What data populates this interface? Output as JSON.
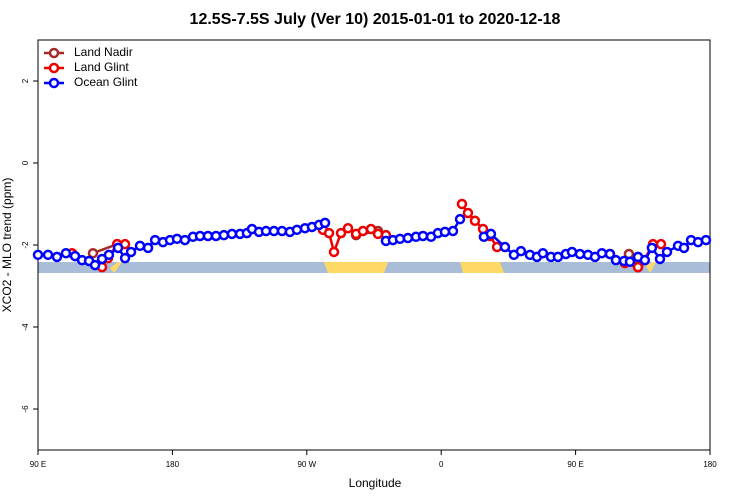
{
  "chart_data": {
    "type": "line",
    "title": "12.5S-7.5S July (Ver 10)   2015-01-01 to 2020-12-18",
    "xlabel": "Longitude",
    "ylabel": "XCO2 - MLO trend (ppm)",
    "xlim": [
      90,
      540
    ],
    "ylim": [
      -7,
      3
    ],
    "xticks": [
      {
        "value": 90,
        "label": "90 E"
      },
      180,
      {
        "value": 270,
        "label": "90 W"
      },
      {
        "value": 360,
        "label": "0"
      },
      {
        "value": 450,
        "label": "90 E"
      },
      {
        "value": 540,
        "label": "180"
      }
    ],
    "yticks": [
      2,
      0,
      -2,
      -4,
      -6
    ],
    "legend": "topleft",
    "series": [
      {
        "name": "Land Nadir",
        "color": "#a52a2a",
        "x": [
          126.8,
          143.0,
          200,
          303.0,
          317.7,
          400,
          485.7,
          491.8
        ],
        "values": [
          -2.2,
          -1.98,
          null,
          -1.76,
          -1.66,
          null,
          -2.22,
          -2.54
        ]
      },
      {
        "name": "Land Glint",
        "color": "#ee0000",
        "x": [
          112.8,
          132.9,
          136.9,
          143.0,
          148.3,
          200,
          280.8,
          284.9,
          288.2,
          292.9,
          297.6,
          303.0,
          307.6,
          313.0,
          317.7,
          323.0,
          350,
          373.9,
          377.9,
          382.6,
          388.0,
          392.7,
          397.4,
          430,
          473.0,
          483.0,
          491.8,
          495.8,
          501.8,
          507.2
        ],
        "values": [
          -2.2,
          -2.54,
          -2.32,
          -1.98,
          -1.98,
          null,
          -1.63,
          -1.71,
          -2.17,
          -1.71,
          -1.59,
          -1.73,
          -1.66,
          -1.61,
          -1.73,
          -1.76,
          null,
          -1.0,
          -1.22,
          -1.41,
          -1.61,
          -1.78,
          -2.05,
          null,
          -2.22,
          -2.44,
          -2.54,
          -2.37,
          -1.98,
          -1.98
        ]
      },
      {
        "name": "Ocean Glint",
        "color": "#0000ff",
        "x": [
          90,
          96.7,
          102.7,
          108.7,
          114.8,
          119.5,
          124.2,
          128.2,
          132.9,
          137.5,
          143.6,
          148.3,
          152.3,
          158.3,
          163.7,
          168.4,
          173.7,
          178.4,
          183.1,
          188.4,
          193.8,
          198.5,
          203.8,
          209.2,
          214.5,
          219.9,
          225.3,
          229.9,
          233.3,
          238.0,
          242.7,
          248.0,
          253.4,
          258.7,
          263.4,
          268.8,
          273.5,
          278.2,
          282.2,
          300,
          323.0,
          327.7,
          332.4,
          337.7,
          343.1,
          347.8,
          353.2,
          357.8,
          362.5,
          367.9,
          372.6,
          380,
          388.6,
          393.3,
          402.7,
          408.7,
          413.4,
          419.4,
          424.1,
          428.1,
          433.5,
          438.2,
          443.5,
          447.6,
          452.9,
          458.3,
          463.0,
          467.6,
          473.0,
          477.0,
          482.4,
          486.4,
          491.8,
          496.4,
          501.1,
          506.5,
          511.2,
          518.6,
          522.6,
          527.3,
          532.0,
          537.3
        ],
        "values": [
          -2.24,
          -2.24,
          -2.29,
          -2.2,
          -2.27,
          -2.37,
          -2.39,
          -2.49,
          -2.34,
          -2.24,
          -2.07,
          -2.32,
          -2.17,
          -2.02,
          -2.07,
          -1.88,
          -1.93,
          -1.88,
          -1.85,
          -1.88,
          -1.8,
          -1.78,
          -1.78,
          -1.78,
          -1.76,
          -1.73,
          -1.73,
          -1.71,
          -1.61,
          -1.68,
          -1.66,
          -1.66,
          -1.66,
          -1.68,
          -1.63,
          -1.59,
          -1.56,
          -1.51,
          -1.46,
          null,
          -1.9,
          -1.88,
          -1.85,
          -1.83,
          -1.8,
          -1.78,
          -1.8,
          -1.71,
          -1.68,
          -1.66,
          -1.37,
          null,
          -1.8,
          -1.73,
          -2.05,
          -2.24,
          -2.15,
          -2.24,
          -2.29,
          -2.2,
          -2.29,
          -2.29,
          -2.22,
          -2.17,
          -2.22,
          -2.24,
          -2.29,
          -2.2,
          -2.22,
          -2.37,
          -2.39,
          -2.41,
          -2.29,
          -2.37,
          -2.07,
          -2.34,
          -2.17,
          -2.02,
          -2.07,
          -1.88,
          -1.93,
          -1.88
        ]
      }
    ]
  }
}
